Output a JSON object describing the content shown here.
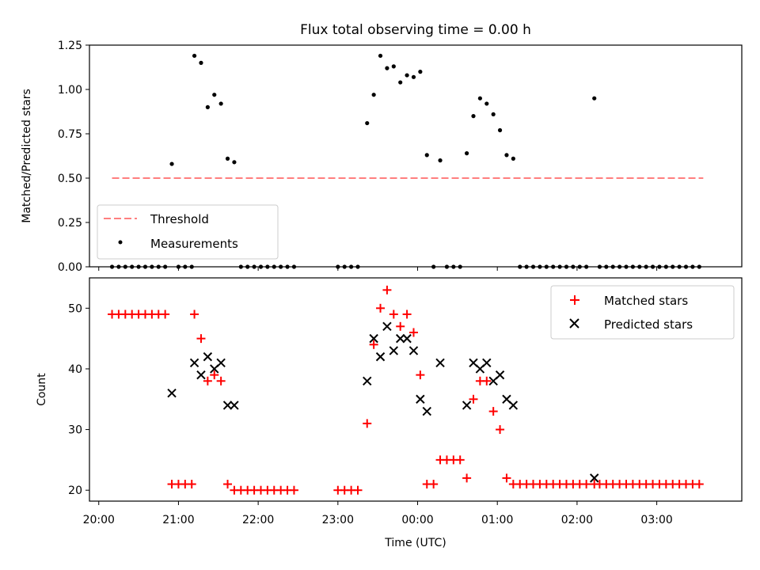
{
  "title": "Flux total observing time = 0.00 h",
  "colors": {
    "threshold": "#ff7f7f",
    "measurements": "#000000",
    "matched": "#ff0000",
    "predicted": "#000000"
  },
  "chart_data": [
    {
      "type": "scatter",
      "title": "Flux total observing time = 0.00 h",
      "xlabel": "",
      "ylabel": "Matched/Predicted stars",
      "ylim": [
        0,
        1.25
      ],
      "yticks": [
        "0.00",
        "0.25",
        "0.50",
        "0.75",
        "1.00",
        "1.25"
      ],
      "legend": {
        "placement": "lower-left",
        "entries": [
          {
            "name": "Threshold",
            "style": "dashed-line"
          },
          {
            "name": "Measurements",
            "style": "dot"
          }
        ]
      },
      "threshold": {
        "name": "Threshold",
        "y": 0.5,
        "x_start": "20:10",
        "x_end": "03:35"
      },
      "series": [
        {
          "name": "Measurements",
          "points": [
            [
              "20:10",
              0
            ],
            [
              "20:15",
              0
            ],
            [
              "20:20",
              0
            ],
            [
              "20:25",
              0
            ],
            [
              "20:30",
              0
            ],
            [
              "20:35",
              0
            ],
            [
              "20:40",
              0
            ],
            [
              "20:45",
              0
            ],
            [
              "20:50",
              0
            ],
            [
              "20:55",
              0.58
            ],
            [
              "21:00",
              0
            ],
            [
              "21:05",
              0
            ],
            [
              "21:10",
              0
            ],
            [
              "21:12",
              1.19
            ],
            [
              "21:17",
              1.15
            ],
            [
              "21:22",
              0.9
            ],
            [
              "21:27",
              0.97
            ],
            [
              "21:32",
              0.92
            ],
            [
              "21:37",
              0.61
            ],
            [
              "21:42",
              0.59
            ],
            [
              "21:47",
              0
            ],
            [
              "21:52",
              0
            ],
            [
              "21:57",
              0
            ],
            [
              "22:02",
              0
            ],
            [
              "22:07",
              0
            ],
            [
              "22:12",
              0
            ],
            [
              "22:17",
              0
            ],
            [
              "22:22",
              0
            ],
            [
              "22:27",
              0
            ],
            [
              "23:00",
              0
            ],
            [
              "23:05",
              0
            ],
            [
              "23:10",
              0
            ],
            [
              "23:15",
              0
            ],
            [
              "23:22",
              0.81
            ],
            [
              "23:27",
              0.97
            ],
            [
              "23:32",
              1.19
            ],
            [
              "23:37",
              1.12
            ],
            [
              "23:42",
              1.13
            ],
            [
              "23:47",
              1.04
            ],
            [
              "23:52",
              1.08
            ],
            [
              "23:57",
              1.07
            ],
            [
              "00:02",
              1.1
            ],
            [
              "00:07",
              0.63
            ],
            [
              "00:12",
              0
            ],
            [
              "00:17",
              0.6
            ],
            [
              "00:22",
              0
            ],
            [
              "00:27",
              0
            ],
            [
              "00:32",
              0
            ],
            [
              "00:37",
              0.64
            ],
            [
              "00:42",
              0.85
            ],
            [
              "00:47",
              0.95
            ],
            [
              "00:52",
              0.92
            ],
            [
              "00:57",
              0.86
            ],
            [
              "01:02",
              0.77
            ],
            [
              "01:07",
              0.63
            ],
            [
              "01:12",
              0.61
            ],
            [
              "01:17",
              0
            ],
            [
              "01:22",
              0
            ],
            [
              "01:27",
              0
            ],
            [
              "01:32",
              0
            ],
            [
              "01:37",
              0
            ],
            [
              "01:42",
              0
            ],
            [
              "01:47",
              0
            ],
            [
              "01:52",
              0
            ],
            [
              "01:57",
              0
            ],
            [
              "02:02",
              0
            ],
            [
              "02:07",
              0
            ],
            [
              "02:13",
              0.95
            ],
            [
              "02:17",
              0
            ],
            [
              "02:22",
              0
            ],
            [
              "02:27",
              0
            ],
            [
              "02:32",
              0
            ],
            [
              "02:37",
              0
            ],
            [
              "02:42",
              0
            ],
            [
              "02:47",
              0
            ],
            [
              "02:52",
              0
            ],
            [
              "02:57",
              0
            ],
            [
              "03:02",
              0
            ],
            [
              "03:07",
              0
            ],
            [
              "03:12",
              0
            ],
            [
              "03:17",
              0
            ],
            [
              "03:22",
              0
            ],
            [
              "03:27",
              0
            ],
            [
              "03:32",
              0
            ]
          ]
        }
      ]
    },
    {
      "type": "scatter",
      "title": "",
      "xlabel": "Time (UTC)",
      "ylabel": "Count",
      "ylim": [
        18.2,
        55
      ],
      "yticks": [
        "20",
        "30",
        "40",
        "50"
      ],
      "xrange": [
        "19:53",
        "04:04"
      ],
      "xticks": [
        "20:00",
        "21:00",
        "22:00",
        "23:00",
        "00:00",
        "01:00",
        "02:00",
        "03:00"
      ],
      "legend": {
        "placement": "upper-right",
        "entries": [
          {
            "name": "Matched stars",
            "style": "plus"
          },
          {
            "name": "Predicted stars",
            "style": "x"
          }
        ]
      },
      "series": [
        {
          "name": "Matched stars",
          "marker": "plus",
          "points": [
            [
              "20:10",
              49
            ],
            [
              "20:15",
              49
            ],
            [
              "20:20",
              49
            ],
            [
              "20:25",
              49
            ],
            [
              "20:30",
              49
            ],
            [
              "20:35",
              49
            ],
            [
              "20:40",
              49
            ],
            [
              "20:45",
              49
            ],
            [
              "20:50",
              49
            ],
            [
              "20:55",
              21
            ],
            [
              "21:00",
              21
            ],
            [
              "21:05",
              21
            ],
            [
              "21:10",
              21
            ],
            [
              "21:12",
              49
            ],
            [
              "21:17",
              45
            ],
            [
              "21:22",
              38
            ],
            [
              "21:27",
              39
            ],
            [
              "21:32",
              38
            ],
            [
              "21:37",
              21
            ],
            [
              "21:42",
              20
            ],
            [
              "21:47",
              20
            ],
            [
              "21:52",
              20
            ],
            [
              "21:57",
              20
            ],
            [
              "22:02",
              20
            ],
            [
              "22:07",
              20
            ],
            [
              "22:12",
              20
            ],
            [
              "22:17",
              20
            ],
            [
              "22:22",
              20
            ],
            [
              "22:27",
              20
            ],
            [
              "23:00",
              20
            ],
            [
              "23:05",
              20
            ],
            [
              "23:10",
              20
            ],
            [
              "23:15",
              20
            ],
            [
              "23:22",
              31
            ],
            [
              "23:27",
              44
            ],
            [
              "23:32",
              50
            ],
            [
              "23:37",
              53
            ],
            [
              "23:42",
              49
            ],
            [
              "23:47",
              47
            ],
            [
              "23:52",
              49
            ],
            [
              "23:57",
              46
            ],
            [
              "00:02",
              39
            ],
            [
              "00:07",
              21
            ],
            [
              "00:12",
              21
            ],
            [
              "00:17",
              25
            ],
            [
              "00:22",
              25
            ],
            [
              "00:27",
              25
            ],
            [
              "00:32",
              25
            ],
            [
              "00:37",
              22
            ],
            [
              "00:42",
              35
            ],
            [
              "00:47",
              38
            ],
            [
              "00:52",
              38
            ],
            [
              "00:57",
              33
            ],
            [
              "01:02",
              30
            ],
            [
              "01:07",
              22
            ],
            [
              "01:12",
              21
            ],
            [
              "01:17",
              21
            ],
            [
              "01:22",
              21
            ],
            [
              "01:27",
              21
            ],
            [
              "01:32",
              21
            ],
            [
              "01:37",
              21
            ],
            [
              "01:42",
              21
            ],
            [
              "01:47",
              21
            ],
            [
              "01:52",
              21
            ],
            [
              "01:57",
              21
            ],
            [
              "02:02",
              21
            ],
            [
              "02:07",
              21
            ],
            [
              "02:13",
              21
            ],
            [
              "02:17",
              21
            ],
            [
              "02:22",
              21
            ],
            [
              "02:27",
              21
            ],
            [
              "02:32",
              21
            ],
            [
              "02:37",
              21
            ],
            [
              "02:42",
              21
            ],
            [
              "02:47",
              21
            ],
            [
              "02:52",
              21
            ],
            [
              "02:57",
              21
            ],
            [
              "03:02",
              21
            ],
            [
              "03:07",
              21
            ],
            [
              "03:12",
              21
            ],
            [
              "03:17",
              21
            ],
            [
              "03:22",
              21
            ],
            [
              "03:27",
              21
            ],
            [
              "03:32",
              21
            ]
          ]
        },
        {
          "name": "Predicted stars",
          "marker": "x",
          "points": [
            [
              "20:55",
              36
            ],
            [
              "21:12",
              41
            ],
            [
              "21:17",
              39
            ],
            [
              "21:22",
              42
            ],
            [
              "21:27",
              40
            ],
            [
              "21:32",
              41
            ],
            [
              "21:37",
              34
            ],
            [
              "21:42",
              34
            ],
            [
              "23:22",
              38
            ],
            [
              "23:27",
              45
            ],
            [
              "23:32",
              42
            ],
            [
              "23:37",
              47
            ],
            [
              "23:42",
              43
            ],
            [
              "23:47",
              45
            ],
            [
              "23:52",
              45
            ],
            [
              "23:57",
              43
            ],
            [
              "00:02",
              35
            ],
            [
              "00:07",
              33
            ],
            [
              "00:17",
              41
            ],
            [
              "00:37",
              34
            ],
            [
              "00:42",
              41
            ],
            [
              "00:47",
              40
            ],
            [
              "00:52",
              41
            ],
            [
              "00:57",
              38
            ],
            [
              "01:02",
              39
            ],
            [
              "01:07",
              35
            ],
            [
              "01:12",
              34
            ],
            [
              "02:13",
              22
            ]
          ]
        }
      ]
    }
  ]
}
